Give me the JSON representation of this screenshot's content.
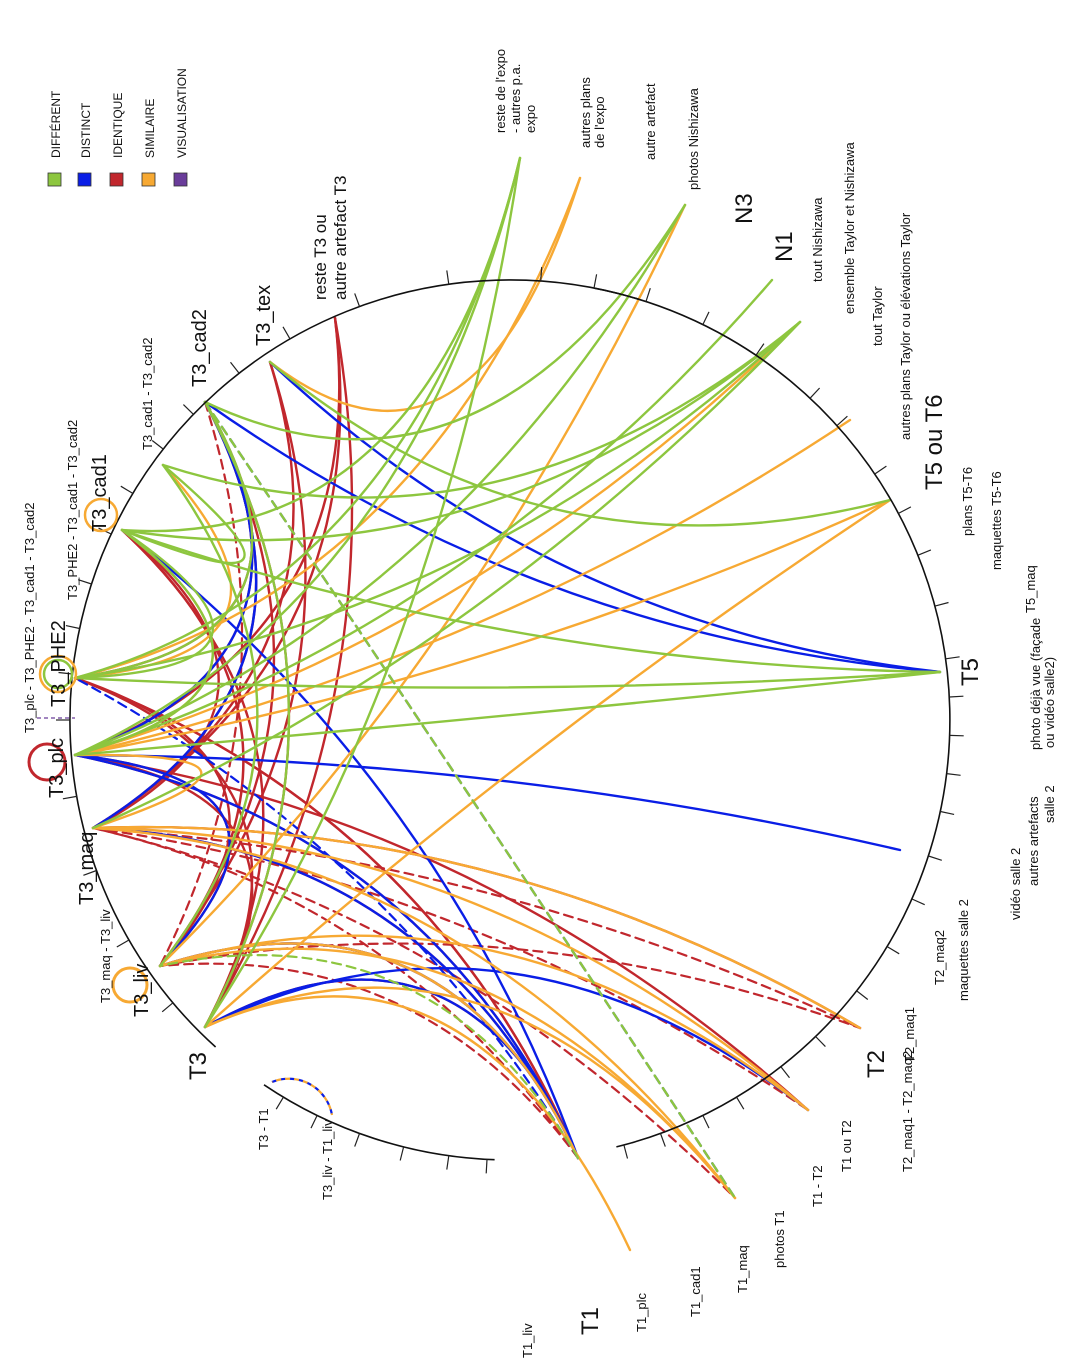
{
  "legend": [
    {
      "label": "DIFFÉRENT",
      "color": "#8dc63f"
    },
    {
      "label": "DISTINCT",
      "color": "#0a1ee6"
    },
    {
      "label": "IDENTIQUE",
      "color": "#c1272d"
    },
    {
      "label": "SIMILAIRE",
      "color": "#f7a933"
    },
    {
      "label": "VISUALISATION",
      "color": "#6a3d9a"
    }
  ],
  "groups": {
    "T1": "T1",
    "T3": "T3",
    "T5": "T5",
    "T2": "T2",
    "T5T6": "T5 ou T6",
    "N1": "N1",
    "N3": "N3",
    "T3_plc": "T3_plc",
    "T3_PHE2": "T3_PHE2",
    "T3_cad1": "T3_cad1",
    "T3_cad2": "T3_cad2",
    "T3_tex": "T3_tex",
    "T3_maq": "T3_maq",
    "T3_liv": "T3_liv"
  },
  "labels": {
    "T1_liv": "T1_liv",
    "T1_plc": "T1_plc",
    "T1_cad1": "T1_cad1",
    "T1_maq": "T1_maq",
    "photos_T1": "photos T1",
    "T1_T2": "T1 - T2",
    "T1_ou_T2": "T1 ou T2",
    "T2_maq1_T2_maq2": "T2_maq1 - T2_maq2",
    "T2_maq1": "T2_maq1",
    "T2_maq2": "T2_maq2",
    "maquettes_salle2": "maquettes salle 2",
    "video_salle2": "vidéo salle 2",
    "autres_artefacts_1": "autres artefacts",
    "autres_artefacts_2": "salle 2",
    "photo_vue_1": "photo déjà vue (façade",
    "photo_vue_2": "ou vidéo salle2)",
    "T5_maq": "T5_maq",
    "maquettes_T5T6": "maquettes T5-T6",
    "plans_T5T6": "plans T5-T6",
    "autres_plans_taylor": "autres plans Taylor ou élévations Taylor",
    "tout_taylor": "tout Taylor",
    "ensemble_taylor": "ensemble Taylor et Nishizawa",
    "tout_nishizawa": "tout Nishizawa",
    "photos_nishizawa": "photos Nishizawa",
    "autre_artefact": "autre artefact",
    "autres_plans_1": "autres plans",
    "autres_plans_2": "de l'expo",
    "reste_expo_1": "reste de l'expo",
    "reste_expo_2": "- autres p.a.",
    "reste_expo_3": "expo",
    "reste_T3_1": "reste T3 ou",
    "reste_T3_2": "autre artefact T3",
    "T3_cad1_cad2": "T3_cad1 - T3_cad2",
    "T3_PHE2_cad1_cad2": "T3_PHE2 - T3_cad1 - T3_cad2",
    "T3_plc_PHE2_cad1_cad2": "T3_plc - T3_PHE2 - T3_cad1 - T3_cad2",
    "T3_maq_T3_liv": "T3_maq - T3_liv",
    "T3_T1": "T3 - T1",
    "T3_liv_T1_liv": "T3_liv - T1_liv"
  }
}
